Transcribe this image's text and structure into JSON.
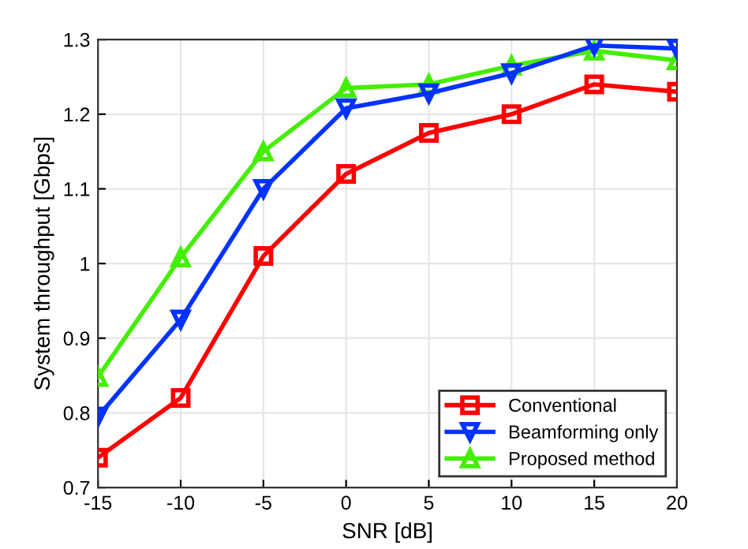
{
  "chart_data": {
    "type": "line",
    "xlabel": "SNR [dB]",
    "ylabel": "System throughput [Gbps]",
    "x": [
      -15,
      -10,
      -5,
      0,
      5,
      10,
      15,
      20
    ],
    "series": [
      {
        "name": "Conventional",
        "color": "#ff0000",
        "marker": "square",
        "values": [
          0.74,
          0.82,
          1.01,
          1.12,
          1.175,
          1.2,
          1.24,
          1.23
        ]
      },
      {
        "name": "Beamforming only",
        "color": "#0033ff",
        "marker": "triangle-down",
        "values": [
          0.795,
          0.925,
          1.1,
          1.208,
          1.228,
          1.255,
          1.292,
          1.288
        ]
      },
      {
        "name": "Proposed method",
        "color": "#44ee00",
        "marker": "triangle",
        "values": [
          0.848,
          1.008,
          1.15,
          1.235,
          1.24,
          1.265,
          1.285,
          1.272
        ]
      }
    ],
    "xlim": [
      -15,
      20
    ],
    "xticks": [
      -15,
      -10,
      -5,
      0,
      5,
      10,
      15,
      20
    ],
    "ylim": [
      0.7,
      1.3
    ],
    "yticks": [
      0.7,
      0.8,
      0.9,
      1,
      1.1,
      1.2,
      1.3
    ],
    "grid": true,
    "legend": "bottom right",
    "line_style": "solid"
  }
}
